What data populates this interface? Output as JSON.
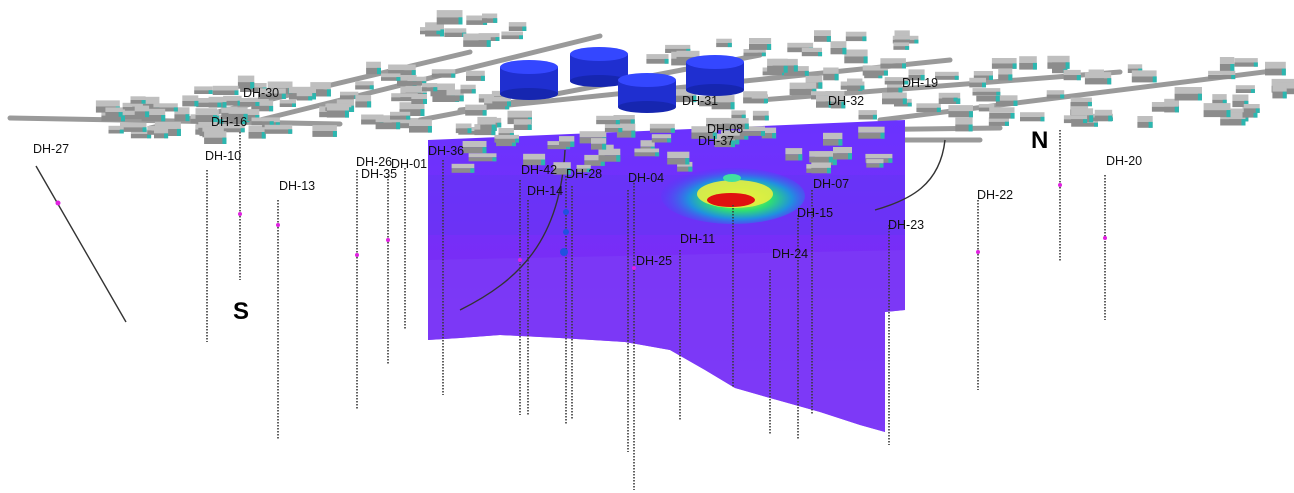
{
  "scene": {
    "direction_labels": {
      "south": "S",
      "north": "N"
    },
    "colors": {
      "background": "#ffffff",
      "section_fill": "#7a2cff",
      "section_dark": "#5b1fe0",
      "building_top": "#bfbfbf",
      "building_side": "#8c8c8c",
      "building_roof_accent": "#2bb7b0",
      "tank_color": "#1f2fd0",
      "hotspot_red": "#e01010",
      "hotspot_yellow": "#f5f000",
      "hotspot_green": "#20e070",
      "borehole_line": "#333333",
      "sample_marker": "#e020e0"
    },
    "boreholes": [
      "DH-27",
      "DH-16",
      "DH-10",
      "DH-13",
      "DH-26",
      "DH-35",
      "DH-01",
      "DH-36",
      "DH-42",
      "DH-28",
      "DH-14",
      "DH-04",
      "DH-11",
      "DH-25",
      "DH-24",
      "DH-15",
      "DH-07",
      "DH-08",
      "DH-37",
      "DH-31",
      "DH-32",
      "DH-19",
      "DH-23",
      "DH-22",
      "DH-20",
      "DH-30"
    ]
  }
}
